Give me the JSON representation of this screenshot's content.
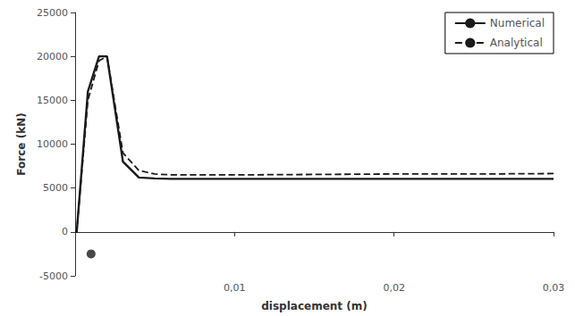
{
  "chart_data": {
    "type": "line",
    "xlabel": "displacement (m)",
    "ylabel": "Force (kN)",
    "xlim": [
      0,
      0.03
    ],
    "ylim": [
      -5000,
      25000
    ],
    "xticks": [
      {
        "value": 0.01,
        "label": "0,01"
      },
      {
        "value": 0.02,
        "label": "0,02"
      },
      {
        "value": 0.03,
        "label": "0,03"
      }
    ],
    "yticks": [
      -5000,
      0,
      5000,
      10000,
      15000,
      20000,
      25000
    ],
    "grid": false,
    "legend": "upper right",
    "series": [
      {
        "name": "Numerical",
        "type": "line",
        "color": "#1a1a1a",
        "line_style": "solid",
        "x": [
          0,
          0.0001,
          0.0008,
          0.0015,
          0.002,
          0.0025,
          0.003,
          0.004,
          0.005,
          0.006,
          0.008,
          0.01,
          0.015,
          0.02,
          0.025,
          0.03
        ],
        "values": [
          0,
          0,
          16000,
          20000,
          20000,
          14000,
          8000,
          6200,
          6100,
          6050,
          6050,
          6050,
          6050,
          6050,
          6050,
          6050
        ]
      },
      {
        "name": "Analytical",
        "type": "line",
        "color": "#1a1a1a",
        "line_style": "dashed",
        "x": [
          0,
          0.0001,
          0.0008,
          0.0015,
          0.002,
          0.0025,
          0.003,
          0.004,
          0.005,
          0.006,
          0.008,
          0.01,
          0.015,
          0.02,
          0.025,
          0.03
        ],
        "values": [
          0,
          0,
          15000,
          19500,
          20000,
          14500,
          9000,
          7000,
          6600,
          6500,
          6500,
          6500,
          6550,
          6600,
          6600,
          6650
        ]
      },
      {
        "type": "scatter",
        "color": "#1a1a1a",
        "marker": "circle",
        "x": [
          0.001
        ],
        "values": [
          -2500
        ]
      }
    ]
  }
}
